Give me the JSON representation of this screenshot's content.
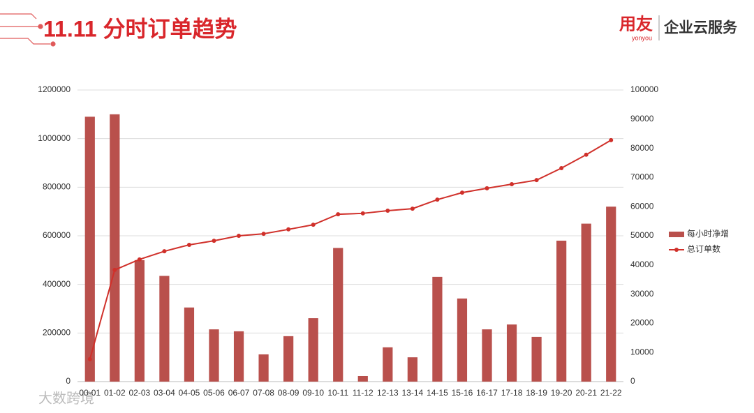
{
  "header": {
    "title": "11.11 分时订单趋势",
    "logo": "用友",
    "logo_sub": "yonyou",
    "brand": "企业云服务"
  },
  "watermark": "大数跨境",
  "chart_data": {
    "type": "combo",
    "categories": [
      "00-01",
      "01-02",
      "02-03",
      "03-04",
      "04-05",
      "05-06",
      "06-07",
      "07-08",
      "08-09",
      "09-10",
      "10-11",
      "11-12",
      "12-13",
      "13-14",
      "14-15",
      "15-16",
      "16-17",
      "17-18",
      "18-19",
      "19-20",
      "20-21",
      "21-22"
    ],
    "series": [
      {
        "name": "每小时净增",
        "type": "bar",
        "color": "#b9504c",
        "axis": "y",
        "values": [
          1090000,
          1100000,
          500000,
          435000,
          305000,
          215000,
          207000,
          112000,
          187000,
          261000,
          550000,
          23000,
          141000,
          100000,
          431000,
          342000,
          215000,
          235000,
          184000,
          580000,
          650000,
          720000
        ]
      },
      {
        "name": "总订单数",
        "type": "line",
        "color": "#d0302a",
        "axis": "y2",
        "values": [
          7700,
          38300,
          41900,
          44700,
          46900,
          48300,
          50000,
          50700,
          52200,
          53800,
          57400,
          57700,
          58600,
          59300,
          62400,
          64800,
          66300,
          67700,
          69100,
          73200,
          77800,
          82800
        ]
      }
    ],
    "ylim": [
      0,
      1200000
    ],
    "yticks": [
      0,
      200000,
      400000,
      600000,
      800000,
      1000000,
      1200000
    ],
    "y2lim": [
      0,
      100000
    ],
    "y2ticks": [
      0,
      10000,
      20000,
      30000,
      40000,
      50000,
      60000,
      70000,
      80000,
      90000,
      100000
    ],
    "grid": true,
    "legend": "right"
  }
}
